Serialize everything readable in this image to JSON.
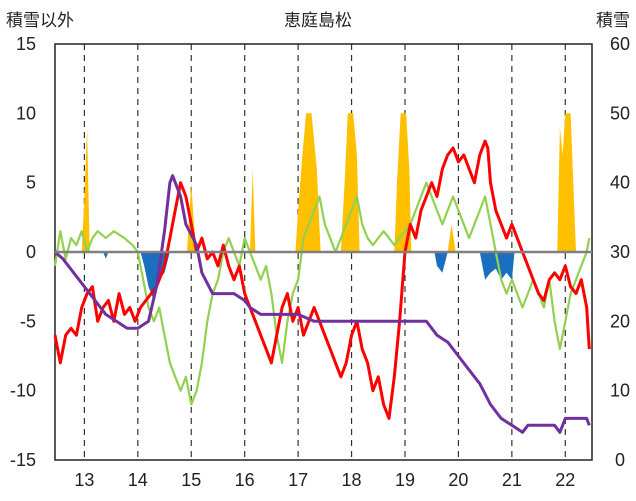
{
  "chart_data": {
    "type": "line",
    "title": "恵庭島松",
    "ylabel": "積雪以外",
    "y2label": "積雪",
    "ylim": [
      -15,
      15
    ],
    "y2lim": [
      0,
      60
    ],
    "yticks": [
      15,
      10,
      5,
      0,
      -5,
      -10,
      -15
    ],
    "y2ticks": [
      60,
      50,
      40,
      30,
      20,
      10,
      0
    ],
    "xlim": [
      12.45,
      22.5
    ],
    "xticks": [
      13,
      14,
      15,
      16,
      17,
      18,
      19,
      20,
      21,
      22
    ],
    "grid": "vertical dashed",
    "legend": "none",
    "series": [
      {
        "color": "#ffc000",
        "kind": "bar",
        "role": "snowfall (positive)",
        "points": [
          [
            12.95,
            0
          ],
          [
            13.0,
            4
          ],
          [
            13.05,
            9
          ],
          [
            13.1,
            0
          ],
          [
            14.92,
            0
          ],
          [
            15.0,
            5
          ],
          [
            15.05,
            2
          ],
          [
            15.1,
            0
          ],
          [
            16.1,
            0
          ],
          [
            16.15,
            6
          ],
          [
            16.2,
            0
          ],
          [
            16.95,
            0
          ],
          [
            17.0,
            3
          ],
          [
            17.08,
            7
          ],
          [
            17.15,
            10
          ],
          [
            17.25,
            10
          ],
          [
            17.35,
            6
          ],
          [
            17.42,
            0
          ],
          [
            17.8,
            0
          ],
          [
            17.87,
            5
          ],
          [
            17.93,
            10
          ],
          [
            18.03,
            10
          ],
          [
            18.1,
            7
          ],
          [
            18.15,
            0
          ],
          [
            18.8,
            0
          ],
          [
            18.85,
            5
          ],
          [
            18.92,
            10
          ],
          [
            19.02,
            10
          ],
          [
            19.08,
            6
          ],
          [
            19.12,
            0
          ],
          [
            19.8,
            0
          ],
          [
            19.87,
            2
          ],
          [
            19.95,
            0
          ],
          [
            21.85,
            0
          ],
          [
            21.9,
            9
          ],
          [
            21.95,
            7
          ],
          [
            22.0,
            10
          ],
          [
            22.1,
            10
          ],
          [
            22.15,
            5
          ],
          [
            22.2,
            0
          ]
        ]
      },
      {
        "color": "#1a6fbe",
        "kind": "bar",
        "role": "negative bars",
        "points": [
          [
            13.35,
            0
          ],
          [
            13.4,
            -0.5
          ],
          [
            13.45,
            0
          ],
          [
            14.05,
            0
          ],
          [
            14.12,
            -1
          ],
          [
            14.2,
            -2.5
          ],
          [
            14.3,
            -3.5
          ],
          [
            14.4,
            -2
          ],
          [
            14.5,
            -1.5
          ],
          [
            14.6,
            0
          ],
          [
            19.55,
            0
          ],
          [
            19.6,
            -1
          ],
          [
            19.7,
            -1.5
          ],
          [
            19.8,
            0
          ],
          [
            20.4,
            0
          ],
          [
            20.5,
            -2
          ],
          [
            20.6,
            -1.5
          ],
          [
            20.7,
            -1.2
          ],
          [
            20.8,
            -2
          ],
          [
            20.9,
            -1.5
          ],
          [
            21.0,
            -2
          ],
          [
            21.05,
            0
          ]
        ]
      },
      {
        "color": "#92d050",
        "kind": "line",
        "role": "green line",
        "points": [
          [
            12.45,
            -1
          ],
          [
            12.55,
            1.5
          ],
          [
            12.65,
            -0.5
          ],
          [
            12.75,
            1
          ],
          [
            12.85,
            0.5
          ],
          [
            12.95,
            1.5
          ],
          [
            13.05,
            0
          ],
          [
            13.15,
            1
          ],
          [
            13.25,
            1.5
          ],
          [
            13.4,
            1
          ],
          [
            13.55,
            1.5
          ],
          [
            13.75,
            1
          ],
          [
            13.9,
            0.5
          ],
          [
            14.0,
            0
          ],
          [
            14.1,
            -2
          ],
          [
            14.2,
            -4
          ],
          [
            14.3,
            -5
          ],
          [
            14.4,
            -4
          ],
          [
            14.5,
            -6
          ],
          [
            14.6,
            -8
          ],
          [
            14.7,
            -9
          ],
          [
            14.8,
            -10
          ],
          [
            14.9,
            -9
          ],
          [
            15.0,
            -11
          ],
          [
            15.1,
            -10
          ],
          [
            15.2,
            -8
          ],
          [
            15.3,
            -5
          ],
          [
            15.4,
            -3
          ],
          [
            15.5,
            -2
          ],
          [
            15.6,
            0
          ],
          [
            15.7,
            1
          ],
          [
            15.8,
            0
          ],
          [
            15.9,
            -1
          ],
          [
            16.0,
            1
          ],
          [
            16.1,
            0
          ],
          [
            16.2,
            -1
          ],
          [
            16.3,
            -2
          ],
          [
            16.4,
            -1
          ],
          [
            16.5,
            -3
          ],
          [
            16.6,
            -6
          ],
          [
            16.7,
            -8
          ],
          [
            16.8,
            -5
          ],
          [
            16.9,
            -3
          ],
          [
            17.0,
            -2
          ],
          [
            17.1,
            1
          ],
          [
            17.2,
            2
          ],
          [
            17.3,
            3
          ],
          [
            17.4,
            4
          ],
          [
            17.5,
            2
          ],
          [
            17.6,
            1
          ],
          [
            17.7,
            0
          ],
          [
            17.8,
            1
          ],
          [
            17.9,
            2
          ],
          [
            18.0,
            3
          ],
          [
            18.1,
            4
          ],
          [
            18.2,
            2
          ],
          [
            18.3,
            1
          ],
          [
            18.4,
            0.5
          ],
          [
            18.5,
            1
          ],
          [
            18.6,
            1.5
          ],
          [
            18.7,
            1
          ],
          [
            18.8,
            0.5
          ],
          [
            18.9,
            1
          ],
          [
            19.0,
            1.5
          ],
          [
            19.1,
            2
          ],
          [
            19.2,
            3
          ],
          [
            19.3,
            4
          ],
          [
            19.4,
            5
          ],
          [
            19.5,
            4
          ],
          [
            19.6,
            3
          ],
          [
            19.7,
            2
          ],
          [
            19.8,
            3
          ],
          [
            19.9,
            4
          ],
          [
            20.0,
            3
          ],
          [
            20.1,
            2
          ],
          [
            20.2,
            1
          ],
          [
            20.3,
            2
          ],
          [
            20.4,
            3
          ],
          [
            20.5,
            4
          ],
          [
            20.6,
            2
          ],
          [
            20.7,
            0
          ],
          [
            20.8,
            -2
          ],
          [
            20.9,
            -3
          ],
          [
            21.0,
            -2
          ],
          [
            21.1,
            -3
          ],
          [
            21.2,
            -4
          ],
          [
            21.3,
            -3
          ],
          [
            21.4,
            -2
          ],
          [
            21.5,
            -3
          ],
          [
            21.6,
            -4
          ],
          [
            21.7,
            -2
          ],
          [
            21.8,
            -5
          ],
          [
            21.9,
            -7
          ],
          [
            22.0,
            -5
          ],
          [
            22.1,
            -3
          ],
          [
            22.2,
            -2
          ],
          [
            22.3,
            -1
          ],
          [
            22.4,
            0
          ],
          [
            22.45,
            1
          ]
        ]
      },
      {
        "color": "#ff0000",
        "kind": "line",
        "role": "red line",
        "points": [
          [
            12.45,
            -6
          ],
          [
            12.55,
            -8
          ],
          [
            12.65,
            -6
          ],
          [
            12.75,
            -5.5
          ],
          [
            12.85,
            -6
          ],
          [
            12.95,
            -4
          ],
          [
            13.05,
            -3
          ],
          [
            13.15,
            -2.5
          ],
          [
            13.25,
            -5
          ],
          [
            13.35,
            -4
          ],
          [
            13.45,
            -3.5
          ],
          [
            13.55,
            -5
          ],
          [
            13.65,
            -3
          ],
          [
            13.75,
            -4.5
          ],
          [
            13.85,
            -4
          ],
          [
            13.95,
            -5
          ],
          [
            14.05,
            -4
          ],
          [
            14.15,
            -3.5
          ],
          [
            14.25,
            -3
          ],
          [
            14.35,
            -2.5
          ],
          [
            14.5,
            -1
          ],
          [
            14.6,
            1
          ],
          [
            14.7,
            3
          ],
          [
            14.8,
            5
          ],
          [
            14.9,
            4
          ],
          [
            15.0,
            2
          ],
          [
            15.1,
            0
          ],
          [
            15.2,
            1
          ],
          [
            15.3,
            -0.5
          ],
          [
            15.4,
            0
          ],
          [
            15.5,
            -1
          ],
          [
            15.6,
            0.5
          ],
          [
            15.7,
            -1
          ],
          [
            15.8,
            -2
          ],
          [
            15.9,
            -1
          ],
          [
            16.0,
            -3
          ],
          [
            16.1,
            -4
          ],
          [
            16.2,
            -5
          ],
          [
            16.3,
            -6
          ],
          [
            16.4,
            -7
          ],
          [
            16.5,
            -8
          ],
          [
            16.6,
            -6
          ],
          [
            16.7,
            -4
          ],
          [
            16.8,
            -3
          ],
          [
            16.9,
            -5
          ],
          [
            17.0,
            -4
          ],
          [
            17.1,
            -6
          ],
          [
            17.2,
            -5
          ],
          [
            17.3,
            -4
          ],
          [
            17.4,
            -5
          ],
          [
            17.5,
            -6
          ],
          [
            17.6,
            -7
          ],
          [
            17.7,
            -8
          ],
          [
            17.8,
            -9
          ],
          [
            17.9,
            -8
          ],
          [
            18.0,
            -6
          ],
          [
            18.1,
            -5
          ],
          [
            18.2,
            -7
          ],
          [
            18.3,
            -8
          ],
          [
            18.4,
            -10
          ],
          [
            18.5,
            -9
          ],
          [
            18.6,
            -11
          ],
          [
            18.7,
            -12
          ],
          [
            18.8,
            -9
          ],
          [
            18.9,
            -5
          ],
          [
            19.0,
            0
          ],
          [
            19.1,
            2
          ],
          [
            19.2,
            1
          ],
          [
            19.3,
            3
          ],
          [
            19.4,
            4
          ],
          [
            19.5,
            5
          ],
          [
            19.6,
            4
          ],
          [
            19.7,
            6
          ],
          [
            19.8,
            7
          ],
          [
            19.9,
            7.5
          ],
          [
            20.0,
            6.5
          ],
          [
            20.1,
            7
          ],
          [
            20.2,
            6
          ],
          [
            20.3,
            5
          ],
          [
            20.4,
            7
          ],
          [
            20.5,
            8
          ],
          [
            20.55,
            7.5
          ],
          [
            20.6,
            5
          ],
          [
            20.7,
            3
          ],
          [
            20.8,
            2
          ],
          [
            20.9,
            1
          ],
          [
            21.0,
            2
          ],
          [
            21.1,
            1
          ],
          [
            21.2,
            0
          ],
          [
            21.3,
            -1
          ],
          [
            21.4,
            -2
          ],
          [
            21.5,
            -3
          ],
          [
            21.6,
            -3.5
          ],
          [
            21.7,
            -2
          ],
          [
            21.8,
            -1.5
          ],
          [
            21.9,
            -2
          ],
          [
            22.0,
            -1
          ],
          [
            22.1,
            -2.5
          ],
          [
            22.2,
            -3
          ],
          [
            22.3,
            -2
          ],
          [
            22.4,
            -4
          ],
          [
            22.45,
            -7
          ]
        ]
      },
      {
        "color": "#7030a0",
        "kind": "line",
        "role": "snow depth (right axis)",
        "axis": "y2",
        "points": [
          [
            12.45,
            30
          ],
          [
            12.6,
            29
          ],
          [
            12.8,
            27
          ],
          [
            13.0,
            25
          ],
          [
            13.2,
            23
          ],
          [
            13.4,
            21
          ],
          [
            13.6,
            20
          ],
          [
            13.8,
            19
          ],
          [
            14.0,
            19
          ],
          [
            14.2,
            20
          ],
          [
            14.35,
            25
          ],
          [
            14.5,
            33
          ],
          [
            14.6,
            40
          ],
          [
            14.65,
            41
          ],
          [
            14.8,
            38
          ],
          [
            14.9,
            34
          ],
          [
            15.1,
            31
          ],
          [
            15.2,
            27
          ],
          [
            15.4,
            24
          ],
          [
            15.6,
            24
          ],
          [
            15.8,
            24
          ],
          [
            16.0,
            23
          ],
          [
            16.1,
            22
          ],
          [
            16.3,
            21
          ],
          [
            16.6,
            21
          ],
          [
            17.0,
            21
          ],
          [
            17.3,
            20
          ],
          [
            17.6,
            20
          ],
          [
            18.0,
            20
          ],
          [
            18.5,
            20
          ],
          [
            19.0,
            20
          ],
          [
            19.4,
            20
          ],
          [
            19.6,
            18
          ],
          [
            19.8,
            17
          ],
          [
            20.0,
            15
          ],
          [
            20.2,
            13
          ],
          [
            20.4,
            11
          ],
          [
            20.6,
            8
          ],
          [
            20.8,
            6
          ],
          [
            21.0,
            5
          ],
          [
            21.2,
            4
          ],
          [
            21.3,
            5
          ],
          [
            21.6,
            5
          ],
          [
            21.8,
            5
          ],
          [
            21.9,
            4
          ],
          [
            22.0,
            6
          ],
          [
            22.2,
            6
          ],
          [
            22.4,
            6
          ],
          [
            22.45,
            5
          ]
        ]
      }
    ]
  }
}
